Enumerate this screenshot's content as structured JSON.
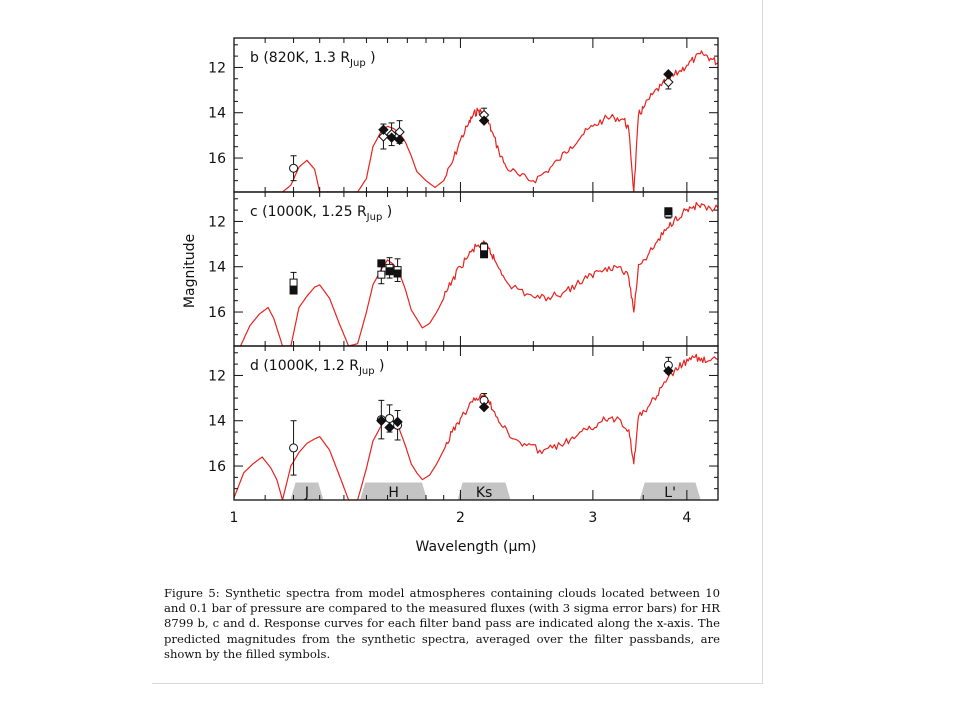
{
  "caption": "Figure 5: Synthetic spectra from model atmospheres containing clouds located between 10 and 0.1 bar of pressure are compared to the measured fluxes (with 3 sigma error bars) for HR 8799 b, c and d. Response curves for each filter band pass are indicated along the x-axis. The predicted magnitudes from the synthetic spectra, averaged over the filter passbands, are shown by the filled symbols.",
  "colors": {
    "model_spectrum": "#e8231f",
    "filter_curve": "#c4c4c4",
    "axes": "#111111"
  },
  "chart_data": {
    "type": "line",
    "xlabel": "Wavelength (μm)",
    "ylabel": "Magnitude",
    "x_scale": "log",
    "xlim": [
      1.0,
      4.4
    ],
    "ylim": [
      17.5,
      10.7
    ],
    "x_ticks": [
      1,
      2,
      3,
      4
    ],
    "y_ticks": [
      12,
      14,
      16
    ],
    "filters": [
      {
        "name": "J",
        "center": 1.25
      },
      {
        "name": "H",
        "center": 1.63
      },
      {
        "name": "Ks",
        "center": 2.15
      },
      {
        "name": "L'",
        "center": 3.8
      }
    ],
    "panels": [
      {
        "label": "b (820K, 1.3 R",
        "label_sub": "Jup",
        "label_end": " )",
        "model": {
          "x": [
            1.1,
            1.13,
            1.16,
            1.19,
            1.22,
            1.25,
            1.28,
            1.3,
            1.33,
            1.37,
            1.42,
            1.46,
            1.5,
            1.53,
            1.57,
            1.6,
            1.63,
            1.66,
            1.69,
            1.72,
            1.75,
            1.8,
            1.85,
            1.9,
            1.95,
            2.0,
            2.05,
            2.08,
            2.11,
            2.14,
            2.17,
            2.2,
            2.25,
            2.3,
            2.4,
            2.5,
            2.6,
            2.7,
            2.8,
            2.9,
            3.0,
            3.1,
            3.2,
            3.3,
            3.35,
            3.4,
            3.45,
            3.5,
            3.6,
            3.7,
            3.8,
            3.9,
            4.0,
            4.1,
            4.2,
            4.3,
            4.4
          ],
          "y": [
            17.5,
            17.5,
            17.5,
            17.2,
            16.4,
            16.1,
            16.5,
            17.5,
            17.5,
            17.5,
            17.5,
            17.5,
            16.9,
            15.5,
            14.8,
            14.6,
            14.7,
            14.9,
            15.3,
            15.9,
            16.6,
            17.0,
            17.3,
            17.0,
            16.2,
            15.2,
            14.5,
            14.1,
            13.9,
            14.0,
            14.3,
            14.8,
            15.7,
            16.4,
            16.8,
            17.0,
            16.6,
            16.1,
            15.5,
            15.0,
            14.6,
            14.3,
            14.2,
            14.3,
            14.8,
            17.5,
            14.1,
            13.8,
            13.2,
            12.8,
            12.5,
            12.2,
            11.9,
            11.6,
            11.4,
            11.6,
            11.8
          ]
        },
        "obs": [
          {
            "x": 1.2,
            "y": 16.45,
            "err": 0.55,
            "sym": "open-circle"
          },
          {
            "x": 1.58,
            "y": 15.05,
            "err": 0.55,
            "sym": "open-diamond"
          },
          {
            "x": 1.62,
            "y": 14.95,
            "err": 0.5,
            "sym": "open-diamond"
          },
          {
            "x": 1.66,
            "y": 14.85,
            "err": 0.5,
            "sym": "open-diamond"
          },
          {
            "x": 2.15,
            "y": 14.1,
            "err": 0.3,
            "sym": "open-diamond"
          },
          {
            "x": 3.78,
            "y": 12.65,
            "err": 0.3,
            "sym": "open-diamond"
          }
        ],
        "pred": [
          {
            "x": 1.58,
            "y": 14.75,
            "sym": "filled-diamond"
          },
          {
            "x": 1.62,
            "y": 15.1,
            "sym": "filled-diamond"
          },
          {
            "x": 1.66,
            "y": 15.2,
            "sym": "filled-diamond"
          },
          {
            "x": 2.15,
            "y": 14.35,
            "sym": "filled-diamond"
          },
          {
            "x": 3.78,
            "y": 12.3,
            "sym": "filled-diamond"
          }
        ]
      },
      {
        "label": "c (1000K, 1.25 R",
        "label_sub": "Jup",
        "label_end": " )",
        "model": {
          "x": [
            1.02,
            1.05,
            1.08,
            1.11,
            1.13,
            1.16,
            1.19,
            1.22,
            1.25,
            1.28,
            1.3,
            1.34,
            1.38,
            1.42,
            1.46,
            1.5,
            1.53,
            1.57,
            1.6,
            1.63,
            1.66,
            1.69,
            1.72,
            1.75,
            1.78,
            1.82,
            1.86,
            1.9,
            1.95,
            2.0,
            2.05,
            2.1,
            2.14,
            2.18,
            2.22,
            2.28,
            2.35,
            2.45,
            2.55,
            2.65,
            2.75,
            2.85,
            2.95,
            3.05,
            3.15,
            3.25,
            3.35,
            3.4,
            3.45,
            3.55,
            3.65,
            3.75,
            3.85,
            3.95,
            4.05,
            4.15,
            4.25,
            4.4
          ],
          "y": [
            17.5,
            16.6,
            16.1,
            15.8,
            16.3,
            17.5,
            17.5,
            15.8,
            15.3,
            14.9,
            14.8,
            15.4,
            16.5,
            17.5,
            17.4,
            16.0,
            14.8,
            14.1,
            13.7,
            13.9,
            14.3,
            15.0,
            15.9,
            16.3,
            16.7,
            16.5,
            16.0,
            15.4,
            14.6,
            14.0,
            13.5,
            13.1,
            13.0,
            13.2,
            13.7,
            14.4,
            14.9,
            15.2,
            15.4,
            15.3,
            15.1,
            14.8,
            14.5,
            14.2,
            14.0,
            14.0,
            14.5,
            16.0,
            13.9,
            13.5,
            12.9,
            12.4,
            11.9,
            11.6,
            11.4,
            11.3,
            11.5,
            11.4
          ]
        },
        "obs": [
          {
            "x": 1.2,
            "y": 14.7,
            "err": 0.45,
            "sym": "open-square"
          },
          {
            "x": 1.57,
            "y": 14.35,
            "err": 0.4,
            "sym": "open-square"
          },
          {
            "x": 1.61,
            "y": 14.05,
            "err": 0.45,
            "sym": "open-square"
          },
          {
            "x": 1.65,
            "y": 14.15,
            "err": 0.5,
            "sym": "open-square"
          },
          {
            "x": 2.15,
            "y": 13.15,
            "err": 0.2,
            "sym": "open-square"
          },
          {
            "x": 3.78,
            "y": 11.65,
            "err": 0.2,
            "sym": "open-square"
          }
        ],
        "pred": [
          {
            "x": 1.2,
            "y": 15.05,
            "sym": "filled-square"
          },
          {
            "x": 1.57,
            "y": 13.85,
            "sym": "filled-square"
          },
          {
            "x": 1.61,
            "y": 14.2,
            "sym": "filled-square"
          },
          {
            "x": 1.65,
            "y": 14.3,
            "sym": "filled-square"
          },
          {
            "x": 2.15,
            "y": 13.45,
            "sym": "filled-square"
          },
          {
            "x": 3.78,
            "y": 11.55,
            "sym": "filled-square"
          }
        ]
      },
      {
        "label": "d (1000K, 1.2 R",
        "label_sub": "Jup",
        "label_end": " )",
        "model": {
          "x": [
            1.0,
            1.03,
            1.06,
            1.09,
            1.12,
            1.14,
            1.16,
            1.19,
            1.22,
            1.25,
            1.28,
            1.3,
            1.34,
            1.38,
            1.42,
            1.46,
            1.5,
            1.53,
            1.57,
            1.6,
            1.63,
            1.66,
            1.69,
            1.72,
            1.75,
            1.78,
            1.82,
            1.86,
            1.9,
            1.95,
            2.0,
            2.05,
            2.1,
            2.14,
            2.18,
            2.22,
            2.28,
            2.35,
            2.45,
            2.55,
            2.65,
            2.75,
            2.85,
            2.95,
            3.05,
            3.15,
            3.25,
            3.35,
            3.4,
            3.45,
            3.55,
            3.65,
            3.75,
            3.85,
            3.95,
            4.05,
            4.15,
            4.25,
            4.4
          ],
          "y": [
            17.4,
            16.3,
            15.9,
            15.6,
            16.1,
            16.6,
            17.5,
            16.0,
            15.4,
            15.0,
            14.8,
            14.7,
            15.3,
            16.4,
            17.5,
            17.5,
            16.1,
            14.9,
            14.2,
            13.9,
            14.0,
            14.4,
            15.1,
            15.9,
            16.3,
            16.6,
            16.4,
            15.9,
            15.3,
            14.5,
            13.9,
            13.4,
            13.0,
            12.9,
            13.1,
            13.6,
            14.3,
            14.8,
            15.1,
            15.3,
            15.2,
            15.0,
            14.7,
            14.4,
            14.1,
            13.9,
            13.9,
            14.4,
            15.9,
            13.8,
            13.4,
            12.9,
            12.3,
            11.8,
            11.5,
            11.3,
            11.2,
            11.4,
            11.3
          ]
        },
        "obs": [
          {
            "x": 1.2,
            "y": 15.2,
            "err": 1.2,
            "sym": "open-circle"
          },
          {
            "x": 1.57,
            "y": 13.95,
            "err": 0.85,
            "sym": "open-circle"
          },
          {
            "x": 1.61,
            "y": 13.9,
            "err": 0.6,
            "sym": "open-circle"
          },
          {
            "x": 1.65,
            "y": 14.2,
            "err": 0.65,
            "sym": "open-circle"
          },
          {
            "x": 2.15,
            "y": 13.1,
            "err": 0.3,
            "sym": "open-circle"
          },
          {
            "x": 3.78,
            "y": 11.55,
            "err": 0.35,
            "sym": "open-circle"
          }
        ],
        "pred": [
          {
            "x": 1.57,
            "y": 14.0,
            "sym": "filled-diamond"
          },
          {
            "x": 1.61,
            "y": 14.3,
            "sym": "filled-diamond"
          },
          {
            "x": 1.65,
            "y": 14.05,
            "sym": "filled-diamond"
          },
          {
            "x": 2.15,
            "y": 13.4,
            "sym": "filled-diamond"
          },
          {
            "x": 3.78,
            "y": 11.8,
            "sym": "filled-diamond"
          }
        ]
      }
    ]
  }
}
